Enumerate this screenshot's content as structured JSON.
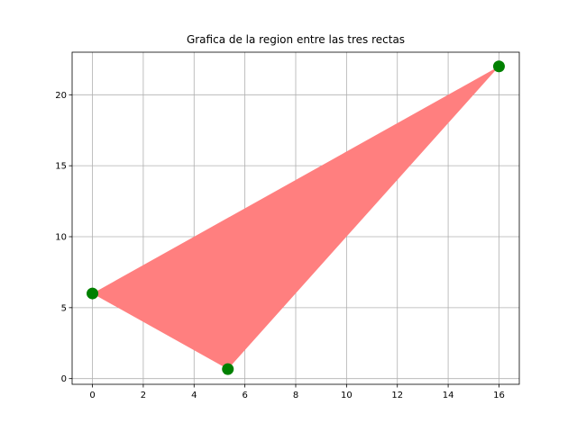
{
  "chart_data": {
    "type": "area",
    "title": "Grafica de la region entre las tres rectas",
    "xlabel": "",
    "ylabel": "",
    "xlim": [
      -0.8,
      16.8
    ],
    "ylim": [
      -0.4,
      23.0
    ],
    "xticks": [
      0,
      2,
      4,
      6,
      8,
      10,
      12,
      14,
      16
    ],
    "yticks": [
      0,
      5,
      10,
      15,
      20
    ],
    "grid": true,
    "region": {
      "vertices": [
        [
          0,
          6
        ],
        [
          5.33,
          0.67
        ],
        [
          16,
          22
        ]
      ],
      "color": "#ff7f7f"
    },
    "points": {
      "x": [
        0,
        5.33,
        16
      ],
      "y": [
        6,
        0.67,
        22
      ],
      "color": "#008000"
    }
  }
}
